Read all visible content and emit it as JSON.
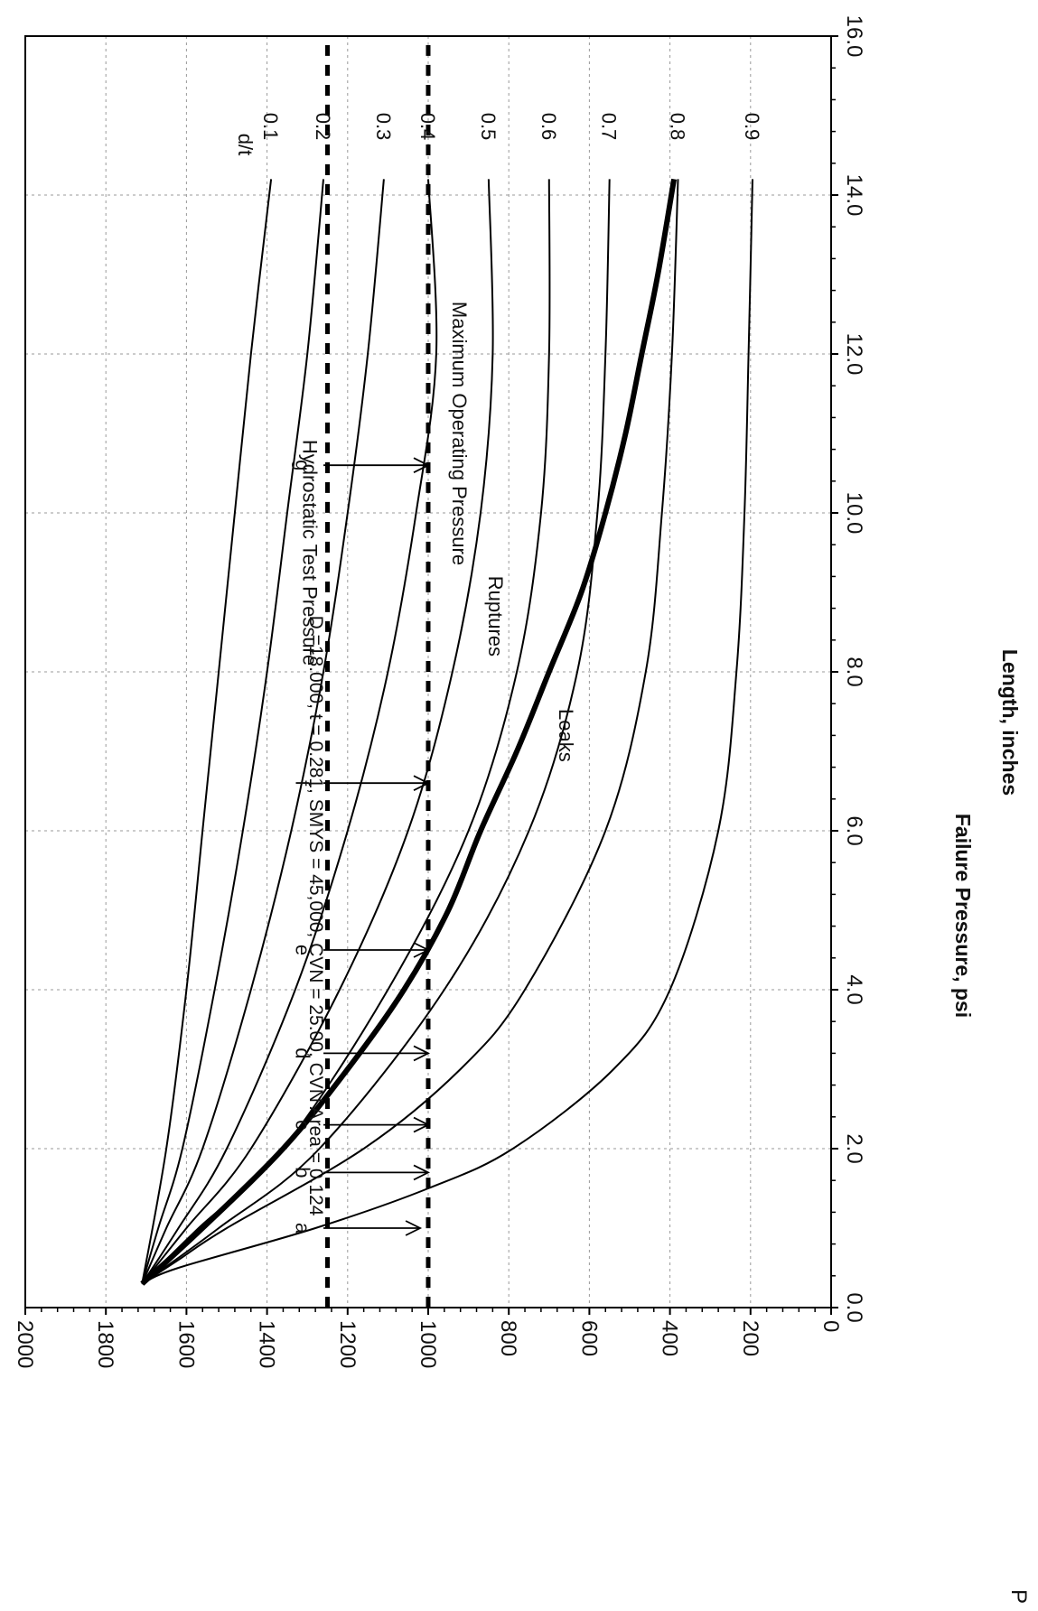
{
  "page": {
    "corner_mark": "P"
  },
  "chart_data": {
    "type": "line",
    "title": "D =18.000, t = 0.281, SMYS = 45,000, CVN = 25.00, CVN Area = 0.124",
    "xlabel": "Length, inches",
    "ylabel": "Failure Pressure, psi",
    "xlim": [
      0,
      16
    ],
    "ylim": [
      0,
      2000
    ],
    "x_ticks": [
      "0.0",
      "2.0",
      "4.0",
      "6.0",
      "8.0",
      "10.0",
      "12.0",
      "14.0",
      "16.0"
    ],
    "y_ticks": [
      "0",
      "200",
      "400",
      "600",
      "800",
      "1000",
      "1200",
      "1400",
      "1600",
      "1800",
      "2000"
    ],
    "grid": true,
    "orientation": "rotated 90 degrees clockwise on page",
    "legend_heading": "d/t",
    "series": [
      {
        "name": "0.1",
        "style": "solid",
        "points": [
          [
            0.3,
            1710
          ],
          [
            2,
            1650
          ],
          [
            4,
            1600
          ],
          [
            6,
            1560
          ],
          [
            8,
            1520
          ],
          [
            10,
            1480
          ],
          [
            12,
            1440
          ],
          [
            14.2,
            1390
          ]
        ]
      },
      {
        "name": "0.2",
        "style": "solid",
        "points": [
          [
            0.3,
            1710
          ],
          [
            1,
            1670
          ],
          [
            2,
            1610
          ],
          [
            4,
            1530
          ],
          [
            6,
            1460
          ],
          [
            8,
            1400
          ],
          [
            10,
            1350
          ],
          [
            12,
            1300
          ],
          [
            14.2,
            1260
          ]
        ]
      },
      {
        "name": "0.3",
        "style": "solid",
        "points": [
          [
            0.3,
            1710
          ],
          [
            1,
            1650
          ],
          [
            2,
            1560
          ],
          [
            4,
            1440
          ],
          [
            6,
            1340
          ],
          [
            8,
            1260
          ],
          [
            10,
            1200
          ],
          [
            12,
            1150
          ],
          [
            14.2,
            1110
          ]
        ]
      },
      {
        "name": "0.4",
        "style": "solid",
        "points": [
          [
            0.3,
            1710
          ],
          [
            1,
            1620
          ],
          [
            2,
            1500
          ],
          [
            4,
            1330
          ],
          [
            6,
            1200
          ],
          [
            8,
            1100
          ],
          [
            10,
            1030
          ],
          [
            12,
            980
          ],
          [
            14.2,
            1000
          ]
        ]
      },
      {
        "name": "0.5",
        "style": "solid",
        "points": [
          [
            0.3,
            1710
          ],
          [
            1,
            1600
          ],
          [
            2,
            1440
          ],
          [
            4,
            1220
          ],
          [
            6,
            1050
          ],
          [
            8,
            940
          ],
          [
            10,
            870
          ],
          [
            12,
            840
          ],
          [
            14.2,
            850
          ]
        ]
      },
      {
        "name": "0.6",
        "style": "solid",
        "points": [
          [
            0.3,
            1710
          ],
          [
            1,
            1570
          ],
          [
            2,
            1360
          ],
          [
            4,
            1100
          ],
          [
            6,
            900
          ],
          [
            8,
            780
          ],
          [
            10,
            720
          ],
          [
            12,
            700
          ],
          [
            14.2,
            700
          ]
        ]
      },
      {
        "name": "0.7",
        "style": "solid",
        "points": [
          [
            0.3,
            1710
          ],
          [
            1,
            1520
          ],
          [
            2,
            1270
          ],
          [
            4,
            960
          ],
          [
            6,
            750
          ],
          [
            8,
            630
          ],
          [
            10,
            580
          ],
          [
            12,
            560
          ],
          [
            14.2,
            550
          ]
        ]
      },
      {
        "name": "0.8",
        "style": "solid",
        "points": [
          [
            0.3,
            1710
          ],
          [
            0.6,
            1620
          ],
          [
            1,
            1500
          ],
          [
            2,
            1160
          ],
          [
            3,
            920
          ],
          [
            4,
            760
          ],
          [
            6,
            560
          ],
          [
            8,
            460
          ],
          [
            10,
            420
          ],
          [
            12,
            395
          ],
          [
            14.2,
            380
          ]
        ]
      },
      {
        "name": "0.9",
        "style": "solid",
        "points": [
          [
            0.3,
            1710
          ],
          [
            0.5,
            1620
          ],
          [
            1,
            1280
          ],
          [
            1.5,
            1000
          ],
          [
            2,
            790
          ],
          [
            3,
            540
          ],
          [
            4,
            400
          ],
          [
            6,
            280
          ],
          [
            8,
            235
          ],
          [
            10,
            215
          ],
          [
            12,
            205
          ],
          [
            14.2,
            195
          ]
        ]
      },
      {
        "name": "Leak/Rupture boundary",
        "style": "thick",
        "points": [
          [
            0.3,
            1710
          ],
          [
            1,
            1560
          ],
          [
            2,
            1360
          ],
          [
            3,
            1200
          ],
          [
            4,
            1060
          ],
          [
            5,
            950
          ],
          [
            6,
            870
          ],
          [
            7,
            780
          ],
          [
            8,
            700
          ],
          [
            9,
            620
          ],
          [
            10,
            560
          ],
          [
            11,
            510
          ],
          [
            12,
            470
          ],
          [
            13,
            430
          ],
          [
            14.2,
            390
          ]
        ]
      },
      {
        "name": "Hydrostatic Test Pressure",
        "style": "dashed",
        "points": [
          [
            0,
            1250
          ],
          [
            16,
            1250
          ]
        ]
      },
      {
        "name": "Maximum Operating Pressure",
        "style": "dashed",
        "points": [
          [
            0,
            1000
          ],
          [
            16,
            1000
          ]
        ]
      }
    ],
    "annotations": [
      {
        "text": "Hydrostatic Test Pressure",
        "x": 9.5,
        "y": 1310
      },
      {
        "text": "Maximum Operating Pressure",
        "x": 11.0,
        "y": 940
      },
      {
        "text": "Ruptures",
        "x": 8.7,
        "y": 850
      },
      {
        "text": "Leaks",
        "x": 7.2,
        "y": 675
      }
    ],
    "markers": [
      {
        "label": "a",
        "x": 1.0,
        "y_from": 1260,
        "y_to": 1020
      },
      {
        "label": "b",
        "x": 1.7,
        "y_from": 1260,
        "y_to": 1000
      },
      {
        "label": "c",
        "x": 2.3,
        "y_from": 1260,
        "y_to": 1000
      },
      {
        "label": "d",
        "x": 3.2,
        "y_from": 1260,
        "y_to": 1000
      },
      {
        "label": "e",
        "x": 4.5,
        "y_from": 1260,
        "y_to": 1000
      },
      {
        "label": "f",
        "x": 6.6,
        "y_from": 1260,
        "y_to": 1000
      },
      {
        "label": "g",
        "x": 10.6,
        "y_from": 1260,
        "y_to": 1000
      }
    ]
  }
}
